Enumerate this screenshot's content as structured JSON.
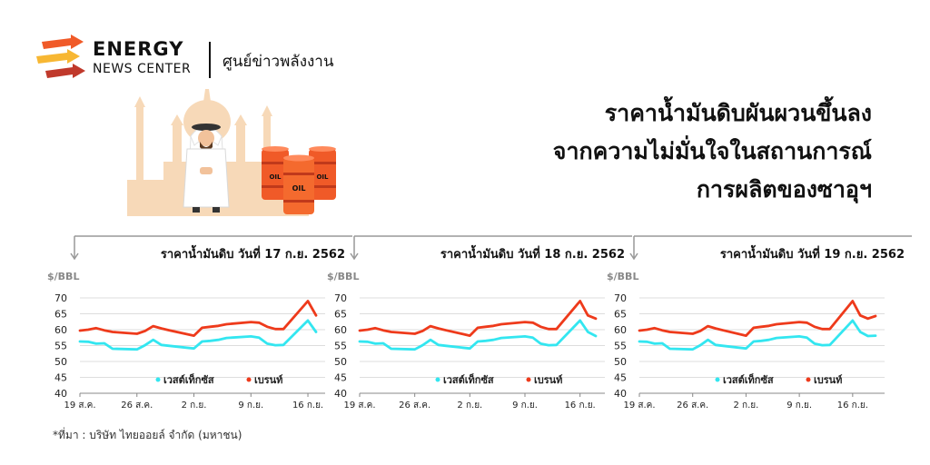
{
  "logo": {
    "brand_line1": "ENERGY",
    "brand_line2": "NEWS CENTER",
    "thai_name": "ศูนย์ข่าวพลังงาน",
    "icon": "energy-arrows-icon"
  },
  "illustration": {
    "barrel_label": "OIL",
    "icons": [
      "mosque-silhouette-icon",
      "arab-man-icon",
      "oil-barrel-icon"
    ]
  },
  "headline": {
    "line1": "ราคาน้ำมันดิบผันผวนขึ้นลง",
    "line2": "จากความไม่มั่นใจในสถานการณ์",
    "line3": "การผลิตของซาอุฯ"
  },
  "source_note": "*ที่มา : บริษัท ไทยออยล์ จำกัด (มหาชน)",
  "colors": {
    "wti": "#33e6f0",
    "brent": "#ee3a1b",
    "grid": "#dddddd",
    "arrow": "#999999"
  },
  "chart_data": [
    {
      "type": "line",
      "title": "ราคาน้ำมันดิบ วันที่ 17 ก.ย. 2562",
      "ylabel": "$/BBL",
      "ylim": [
        40,
        70
      ],
      "yticks": [
        40,
        45,
        50,
        55,
        60,
        65,
        70
      ],
      "xlim": [
        0,
        29
      ],
      "xticks": [
        {
          "x": 0,
          "label": "19 ส.ค."
        },
        {
          "x": 7,
          "label": "26 ส.ค."
        },
        {
          "x": 14,
          "label": "2 ก.ย."
        },
        {
          "x": 21,
          "label": "9 ก.ย."
        },
        {
          "x": 28,
          "label": "16 ก.ย."
        }
      ],
      "grid": true,
      "legend": "bottom",
      "series": [
        {
          "name": "เวสต์เท็กซัส",
          "x": [
            0,
            1,
            2,
            3,
            4,
            7,
            8,
            9,
            10,
            11,
            14,
            15,
            16,
            17,
            18,
            21,
            22,
            23,
            24,
            25,
            28,
            29
          ],
          "values": [
            56.3,
            56.2,
            55.6,
            55.7,
            54.0,
            53.8,
            55.1,
            56.8,
            55.2,
            54.9,
            54.1,
            56.3,
            56.5,
            56.8,
            57.4,
            57.9,
            57.5,
            55.6,
            55.1,
            55.2,
            62.9,
            59.3
          ]
        },
        {
          "name": "เบรนท์",
          "x": [
            0,
            1,
            2,
            3,
            4,
            7,
            8,
            9,
            10,
            11,
            14,
            15,
            16,
            17,
            18,
            21,
            22,
            23,
            24,
            25,
            28,
            29
          ],
          "values": [
            59.7,
            60.0,
            60.5,
            59.8,
            59.3,
            58.7,
            59.6,
            61.1,
            60.4,
            59.8,
            58.1,
            60.6,
            60.9,
            61.2,
            61.7,
            62.4,
            62.2,
            60.9,
            60.2,
            60.2,
            69.0,
            64.5
          ]
        }
      ]
    },
    {
      "type": "line",
      "title": "ราคาน้ำมันดิบ วันที่ 18 ก.ย. 2562",
      "ylabel": "$/BBL",
      "ylim": [
        40,
        70
      ],
      "yticks": [
        40,
        45,
        50,
        55,
        60,
        65,
        70
      ],
      "xlim": [
        0,
        30
      ],
      "xticks": [
        {
          "x": 0,
          "label": "19 ส.ค."
        },
        {
          "x": 7,
          "label": "26 ส.ค."
        },
        {
          "x": 14,
          "label": "2 ก.ย."
        },
        {
          "x": 21,
          "label": "9 ก.ย."
        },
        {
          "x": 28,
          "label": "16 ก.ย."
        }
      ],
      "grid": true,
      "legend": "bottom",
      "series": [
        {
          "name": "เวสต์เท็กซัส",
          "x": [
            0,
            1,
            2,
            3,
            4,
            7,
            8,
            9,
            10,
            11,
            14,
            15,
            16,
            17,
            18,
            21,
            22,
            23,
            24,
            25,
            28,
            29,
            30
          ],
          "values": [
            56.3,
            56.2,
            55.6,
            55.7,
            54.0,
            53.8,
            55.1,
            56.8,
            55.2,
            54.9,
            54.1,
            56.3,
            56.5,
            56.8,
            57.4,
            57.9,
            57.5,
            55.6,
            55.1,
            55.2,
            62.9,
            59.3,
            58.0
          ]
        },
        {
          "name": "เบรนท์",
          "x": [
            0,
            1,
            2,
            3,
            4,
            7,
            8,
            9,
            10,
            11,
            14,
            15,
            16,
            17,
            18,
            21,
            22,
            23,
            24,
            25,
            28,
            29,
            30
          ],
          "values": [
            59.7,
            60.0,
            60.5,
            59.8,
            59.3,
            58.7,
            59.6,
            61.1,
            60.4,
            59.8,
            58.1,
            60.6,
            60.9,
            61.2,
            61.7,
            62.4,
            62.2,
            60.9,
            60.2,
            60.2,
            69.0,
            64.5,
            63.5
          ]
        }
      ]
    },
    {
      "type": "line",
      "title": "ราคาน้ำมันดิบ วันที่ 19 ก.ย. 2562",
      "ylabel": "$/BBL",
      "ylim": [
        40,
        70
      ],
      "yticks": [
        40,
        45,
        50,
        55,
        60,
        65,
        70
      ],
      "xlim": [
        0,
        31
      ],
      "xticks": [
        {
          "x": 0,
          "label": "19 ส.ค."
        },
        {
          "x": 7,
          "label": "26 ส.ค."
        },
        {
          "x": 14,
          "label": "2 ก.ย."
        },
        {
          "x": 21,
          "label": "9 ก.ย."
        },
        {
          "x": 28,
          "label": "16 ก.ย."
        }
      ],
      "grid": true,
      "legend": "bottom",
      "series": [
        {
          "name": "เวสต์เท็กซัส",
          "x": [
            0,
            1,
            2,
            3,
            4,
            7,
            8,
            9,
            10,
            11,
            14,
            15,
            16,
            17,
            18,
            21,
            22,
            23,
            24,
            25,
            28,
            29,
            30,
            31
          ],
          "values": [
            56.3,
            56.2,
            55.6,
            55.7,
            54.0,
            53.8,
            55.1,
            56.8,
            55.2,
            54.9,
            54.1,
            56.3,
            56.5,
            56.8,
            57.4,
            57.9,
            57.5,
            55.6,
            55.1,
            55.2,
            62.9,
            59.3,
            58.0,
            58.1
          ]
        },
        {
          "name": "เบรนท์",
          "x": [
            0,
            1,
            2,
            3,
            4,
            7,
            8,
            9,
            10,
            11,
            14,
            15,
            16,
            17,
            18,
            21,
            22,
            23,
            24,
            25,
            28,
            29,
            30,
            31
          ],
          "values": [
            59.7,
            60.0,
            60.5,
            59.8,
            59.3,
            58.7,
            59.6,
            61.1,
            60.4,
            59.8,
            58.1,
            60.6,
            60.9,
            61.2,
            61.7,
            62.4,
            62.2,
            60.9,
            60.2,
            60.2,
            69.0,
            64.5,
            63.5,
            64.3
          ]
        }
      ]
    }
  ]
}
